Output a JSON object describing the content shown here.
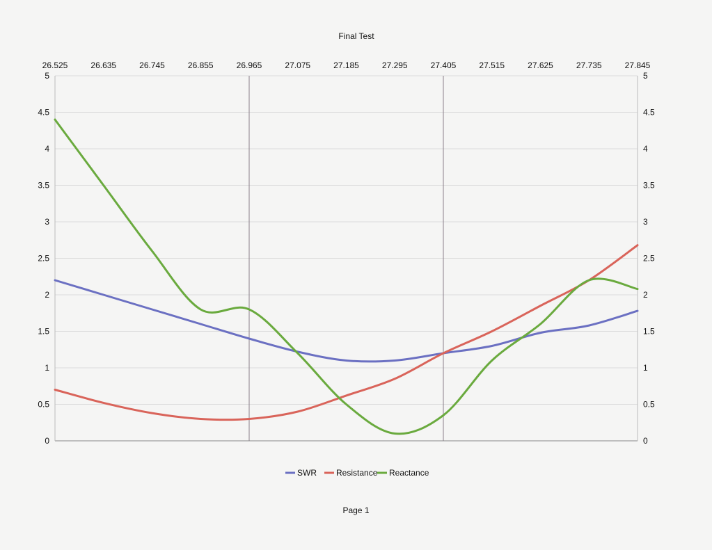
{
  "chart_data": {
    "type": "line",
    "title": "Final Test",
    "x": [
      26.525,
      26.635,
      26.745,
      26.855,
      26.965,
      27.075,
      27.185,
      27.295,
      27.405,
      27.515,
      27.625,
      27.735,
      27.845
    ],
    "x_tick_labels": [
      "26.525",
      "26.635",
      "26.745",
      "26.855",
      "26.965",
      "27.075",
      "27.185",
      "27.295",
      "27.405",
      "27.515",
      "27.625",
      "27.735",
      "27.845"
    ],
    "xlim": [
      26.525,
      27.845
    ],
    "ylim": [
      0,
      5
    ],
    "y_tick_labels": [
      "0",
      "0.5",
      "1",
      "1.5",
      "2",
      "2.5",
      "3",
      "3.5",
      "4",
      "4.5",
      "5"
    ],
    "y_ticks": [
      0,
      0.5,
      1,
      1.5,
      2,
      2.5,
      3,
      3.5,
      4,
      4.5,
      5
    ],
    "x_axis_position": "top",
    "y_axis_labels": "both",
    "grid": true,
    "vertical_markers": [
      26.965,
      27.405
    ],
    "legend": "bottom",
    "series": [
      {
        "name": "SWR",
        "color": "#6b70c2",
        "values": [
          2.2,
          2.0,
          1.8,
          1.6,
          1.4,
          1.22,
          1.1,
          1.1,
          1.2,
          1.3,
          1.48,
          1.58,
          1.78
        ]
      },
      {
        "name": "Resistance",
        "color": "#d9645a",
        "values": [
          0.7,
          0.52,
          0.38,
          0.3,
          0.3,
          0.4,
          0.62,
          0.85,
          1.2,
          1.5,
          1.85,
          2.2,
          2.68
        ]
      },
      {
        "name": "Reactance",
        "color": "#6aaa3e",
        "values": [
          4.4,
          3.5,
          2.6,
          1.8,
          1.8,
          1.2,
          0.5,
          0.1,
          0.35,
          1.1,
          1.6,
          2.2,
          2.08
        ]
      }
    ]
  },
  "footer": {
    "page_label": "Page 1"
  }
}
